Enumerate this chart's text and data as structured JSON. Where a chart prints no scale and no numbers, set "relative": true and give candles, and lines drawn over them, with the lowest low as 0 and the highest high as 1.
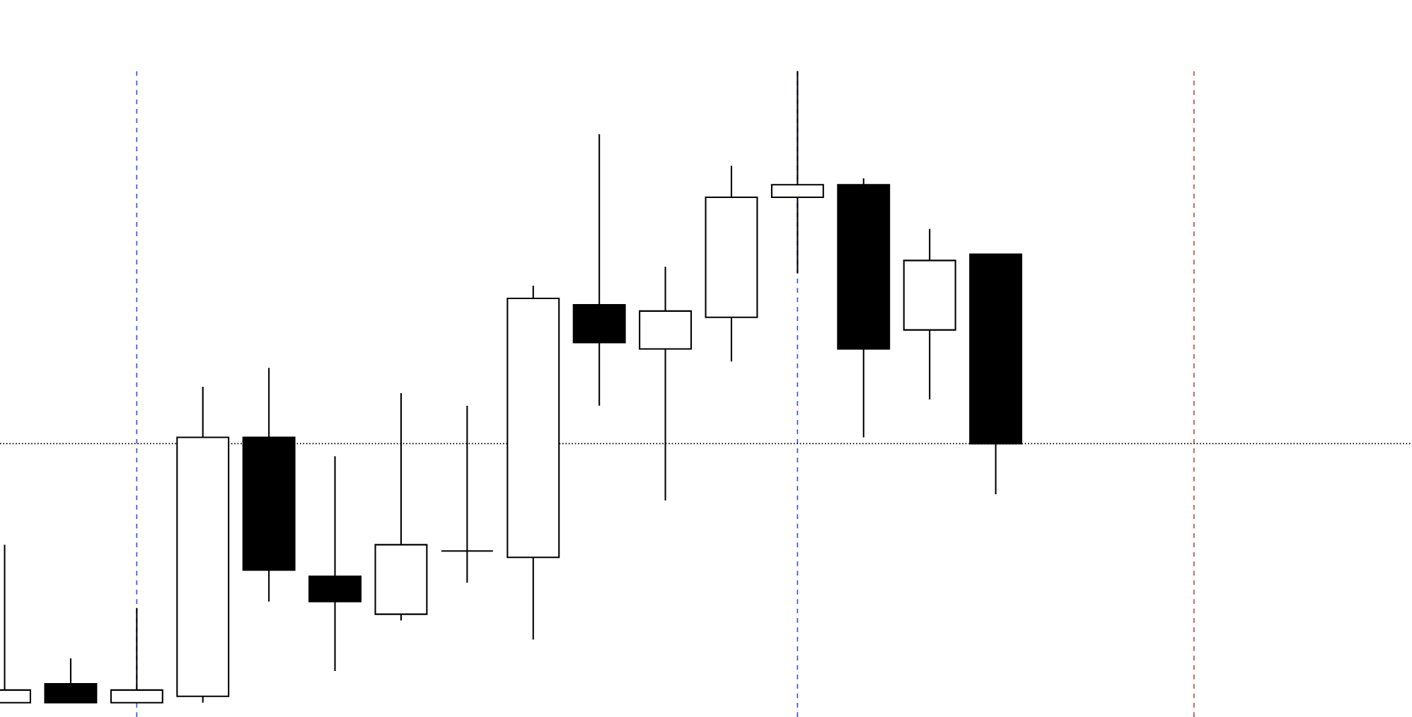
{
  "chart_data": {
    "type": "candlestick",
    "relative": true,
    "categories": [
      null,
      null,
      null,
      null,
      null,
      null,
      null,
      null,
      null,
      null,
      null,
      null,
      null,
      null,
      null,
      null,
      null,
      null,
      null,
      null,
      null,
      null
    ],
    "ohlc": [
      [
        0,
        0.25,
        0,
        0.02
      ],
      [
        0.03,
        0.07,
        0,
        0
      ],
      [
        0,
        0.15,
        0,
        0.02
      ],
      [
        0.01,
        0.5,
        0,
        0.42
      ],
      [
        0.42,
        0.53,
        0.16,
        0.21
      ],
      [
        0.2,
        0.39,
        0.05,
        0.16
      ],
      [
        0.14,
        0.49,
        0.13,
        0.25
      ],
      [
        0.24,
        0.47,
        0.19,
        0.24
      ],
      [
        0.23,
        0.66,
        0.1,
        0.64
      ],
      [
        0.63,
        0.9,
        0.47,
        0.57
      ],
      [
        0.56,
        0.69,
        0.32,
        0.62
      ],
      [
        0.61,
        0.85,
        0.54,
        0.8
      ],
      [
        0.8,
        1,
        0.68,
        0.82
      ],
      [
        0.82,
        0.83,
        0.42,
        0.56
      ],
      [
        0.59,
        0.75,
        0.48,
        0.7
      ],
      [
        0.71,
        0.71,
        0.33,
        0.41
      ],
      null,
      null,
      null,
      null,
      null,
      null
    ],
    "ref_lines": [
      {
        "axis": "y",
        "value": 0.41,
        "color": "#000000",
        "line_style": "dotted"
      }
    ]
  }
}
